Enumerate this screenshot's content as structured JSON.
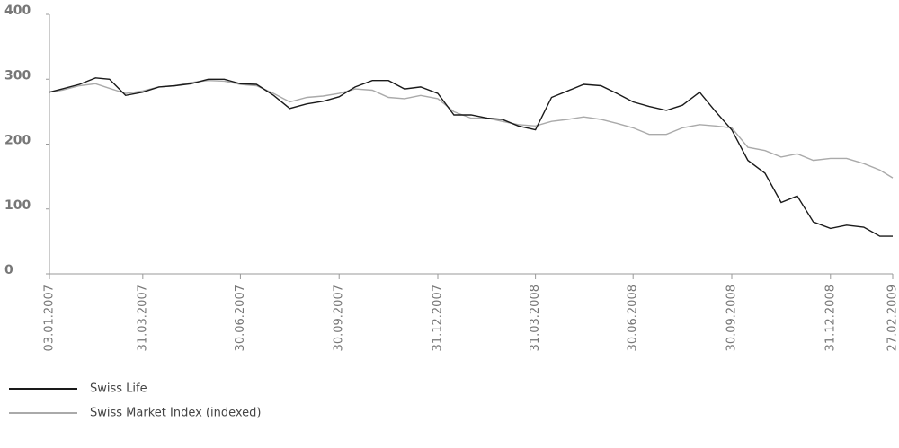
{
  "chart_data": {
    "type": "line",
    "x": [
      "03.01.2007",
      "15.01.2007",
      "31.01.2007",
      "15.02.2007",
      "28.02.2007",
      "15.03.2007",
      "31.03.2007",
      "15.04.2007",
      "30.04.2007",
      "15.05.2007",
      "31.05.2007",
      "15.06.2007",
      "30.06.2007",
      "15.07.2007",
      "31.07.2007",
      "15.08.2007",
      "31.08.2007",
      "15.09.2007",
      "30.09.2007",
      "15.10.2007",
      "31.10.2007",
      "15.11.2007",
      "30.11.2007",
      "15.12.2007",
      "31.12.2007",
      "15.01.2008",
      "31.01.2008",
      "15.02.2008",
      "29.02.2008",
      "15.03.2008",
      "31.03.2008",
      "15.04.2008",
      "30.04.2008",
      "15.05.2008",
      "31.05.2008",
      "15.06.2008",
      "30.06.2008",
      "15.07.2008",
      "31.07.2008",
      "15.08.2008",
      "31.08.2008",
      "15.09.2008",
      "30.09.2008",
      "15.10.2008",
      "31.10.2008",
      "15.11.2008",
      "30.11.2008",
      "15.12.2008",
      "31.12.2008",
      "15.01.2009",
      "31.01.2009",
      "15.02.2009",
      "27.02.2009"
    ],
    "series": [
      {
        "name": "Swiss Life",
        "color": "#1a1a1a",
        "values": [
          280,
          285,
          292,
          302,
          300,
          275,
          280,
          288,
          290,
          293,
          300,
          300,
          293,
          292,
          275,
          255,
          262,
          266,
          273,
          288,
          298,
          298,
          285,
          288,
          278,
          245,
          245,
          240,
          238,
          228,
          222,
          272,
          282,
          292,
          290,
          278,
          265,
          258,
          252,
          260,
          280,
          250,
          222,
          175,
          155,
          110,
          120,
          80,
          70,
          75,
          72,
          58,
          58
        ]
      },
      {
        "name": "Swiss Market Index (indexed)",
        "color": "#aaaaaa",
        "values": [
          280,
          283,
          290,
          293,
          286,
          278,
          282,
          288,
          290,
          295,
          298,
          297,
          292,
          290,
          278,
          265,
          272,
          274,
          278,
          285,
          283,
          272,
          270,
          275,
          270,
          250,
          240,
          240,
          235,
          230,
          228,
          235,
          238,
          242,
          238,
          232,
          225,
          215,
          215,
          225,
          230,
          228,
          225,
          195,
          190,
          180,
          185,
          175,
          178,
          178,
          170,
          160,
          148
        ]
      }
    ],
    "xticks": [
      "03.01.2007",
      "31.03.2007",
      "30.06.2007",
      "30.09.2007",
      "31.12.2007",
      "31.03.2008",
      "30.06.2008",
      "30.09.2008",
      "31.12.2008",
      "27.02.2009"
    ],
    "ylim": [
      0,
      400
    ],
    "yticks": [
      0,
      100,
      200,
      300,
      400
    ]
  }
}
